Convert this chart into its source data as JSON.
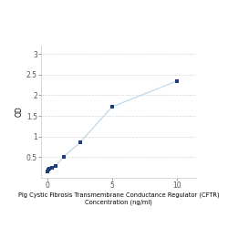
{
  "x": [
    0.0,
    0.078,
    0.156,
    0.313,
    0.625,
    1.25,
    2.5,
    5.0,
    10.0
  ],
  "y": [
    0.164,
    0.188,
    0.218,
    0.248,
    0.288,
    0.51,
    0.85,
    1.72,
    2.34
  ],
  "line_color": "#b8d4e8",
  "marker_color": "#1f3f7a",
  "marker_size": 3.5,
  "marker_style": "s",
  "xlabel_line1": "Pig Cystic Fibrosis Transmembrane Conductance Regulator (CFTR)",
  "xlabel_line2": "Concentration (ng/ml)",
  "ylabel": "OD",
  "xlim": [
    -0.5,
    11.5
  ],
  "ylim": [
    0.0,
    3.2
  ],
  "yticks": [
    0.5,
    1.0,
    1.5,
    2.0,
    2.5,
    3.0
  ],
  "ytick_labels": [
    "0.5",
    "1",
    "1.5",
    "2",
    "2.5",
    "3"
  ],
  "xticks": [
    0,
    5,
    10
  ],
  "grid_color": "#d8d8d8",
  "background_color": "#ffffff",
  "xlabel_fontsize": 4.8,
  "ylabel_fontsize": 5.5,
  "tick_fontsize": 5.5
}
